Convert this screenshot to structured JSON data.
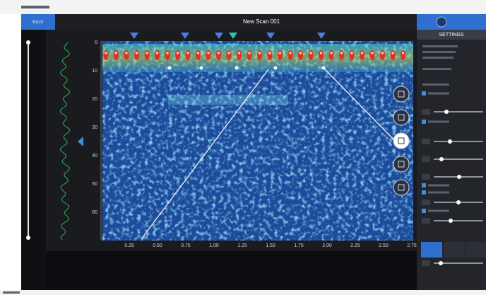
{
  "toolbar": {
    "back": "Back",
    "title": "New Scan 001"
  },
  "settings": {
    "header": "SETTINGS"
  },
  "axes": {
    "y_labels": [
      "0",
      "10",
      "20",
      "30",
      "40",
      "50",
      "60"
    ],
    "x_labels": [
      "0.25",
      "0.50",
      "0.75",
      "1.00",
      "1.25",
      "1.50",
      "1.75",
      "2.00",
      "2.25",
      "2.50",
      "2.75"
    ]
  }
}
